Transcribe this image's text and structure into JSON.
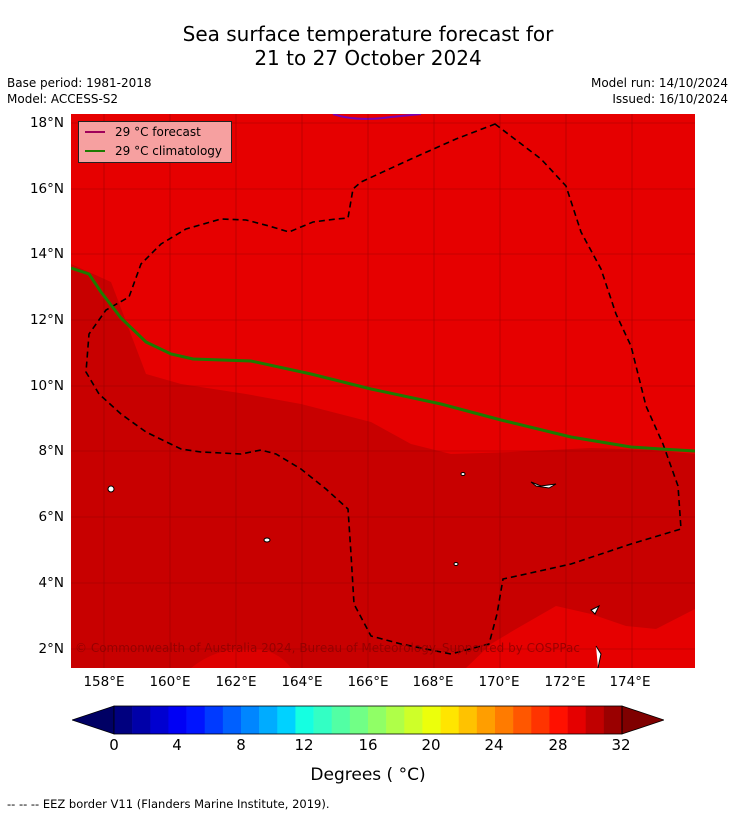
{
  "title": {
    "line1": "Sea surface temperature forecast for",
    "line2": "21 to 27 October 2024"
  },
  "meta": {
    "base_period": "Base period: 1981-2018",
    "model": "Model: ACCESS-S2",
    "model_run": "Model run: 14/10/2024",
    "issued": "Issued: 16/10/2024"
  },
  "map": {
    "y_ticks": [
      "18°N",
      "16°N",
      "14°N",
      "12°N",
      "10°N",
      "8°N",
      "6°N",
      "4°N",
      "2°N"
    ],
    "x_ticks": [
      "158°E",
      "160°E",
      "162°E",
      "164°E",
      "166°E",
      "168°E",
      "170°E",
      "172°E",
      "174°E"
    ],
    "legend": {
      "forecast": "29 °C  forecast",
      "climatology": "29 °C  climatology",
      "forecast_color": "#a0005a",
      "climatology_color": "#1e7a00"
    },
    "credit": "© Commonwealth of Australia 2024, Bureau of Meteorology. Supported by COSPPac",
    "colors": {
      "above_29_30": "#e60000",
      "above_30": "#c80000",
      "land": "#ffffff"
    }
  },
  "colorbar": {
    "labels": [
      "0",
      "4",
      "8",
      "12",
      "16",
      "20",
      "24",
      "28",
      "32"
    ],
    "title": "Degrees ( °C)",
    "colors": [
      "#00007f",
      "#0000a8",
      "#0000d0",
      "#0000f5",
      "#0014ff",
      "#003aff",
      "#0060ff",
      "#0086ff",
      "#00acff",
      "#00d2ff",
      "#15ffe1",
      "#33ffc4",
      "#52ffa4",
      "#71ff86",
      "#90ff66",
      "#afff48",
      "#ceff29",
      "#ecff0b",
      "#ffe500",
      "#ffc200",
      "#ff9e00",
      "#ff7b00",
      "#ff5700",
      "#ff3400",
      "#ff1000",
      "#e50000",
      "#c00000",
      "#9a0000"
    ],
    "low_color": "#000064",
    "high_color": "#7f0000"
  },
  "footer": "--  --  -- EEZ border V11 (Flanders Marine Institute, 2019)."
}
